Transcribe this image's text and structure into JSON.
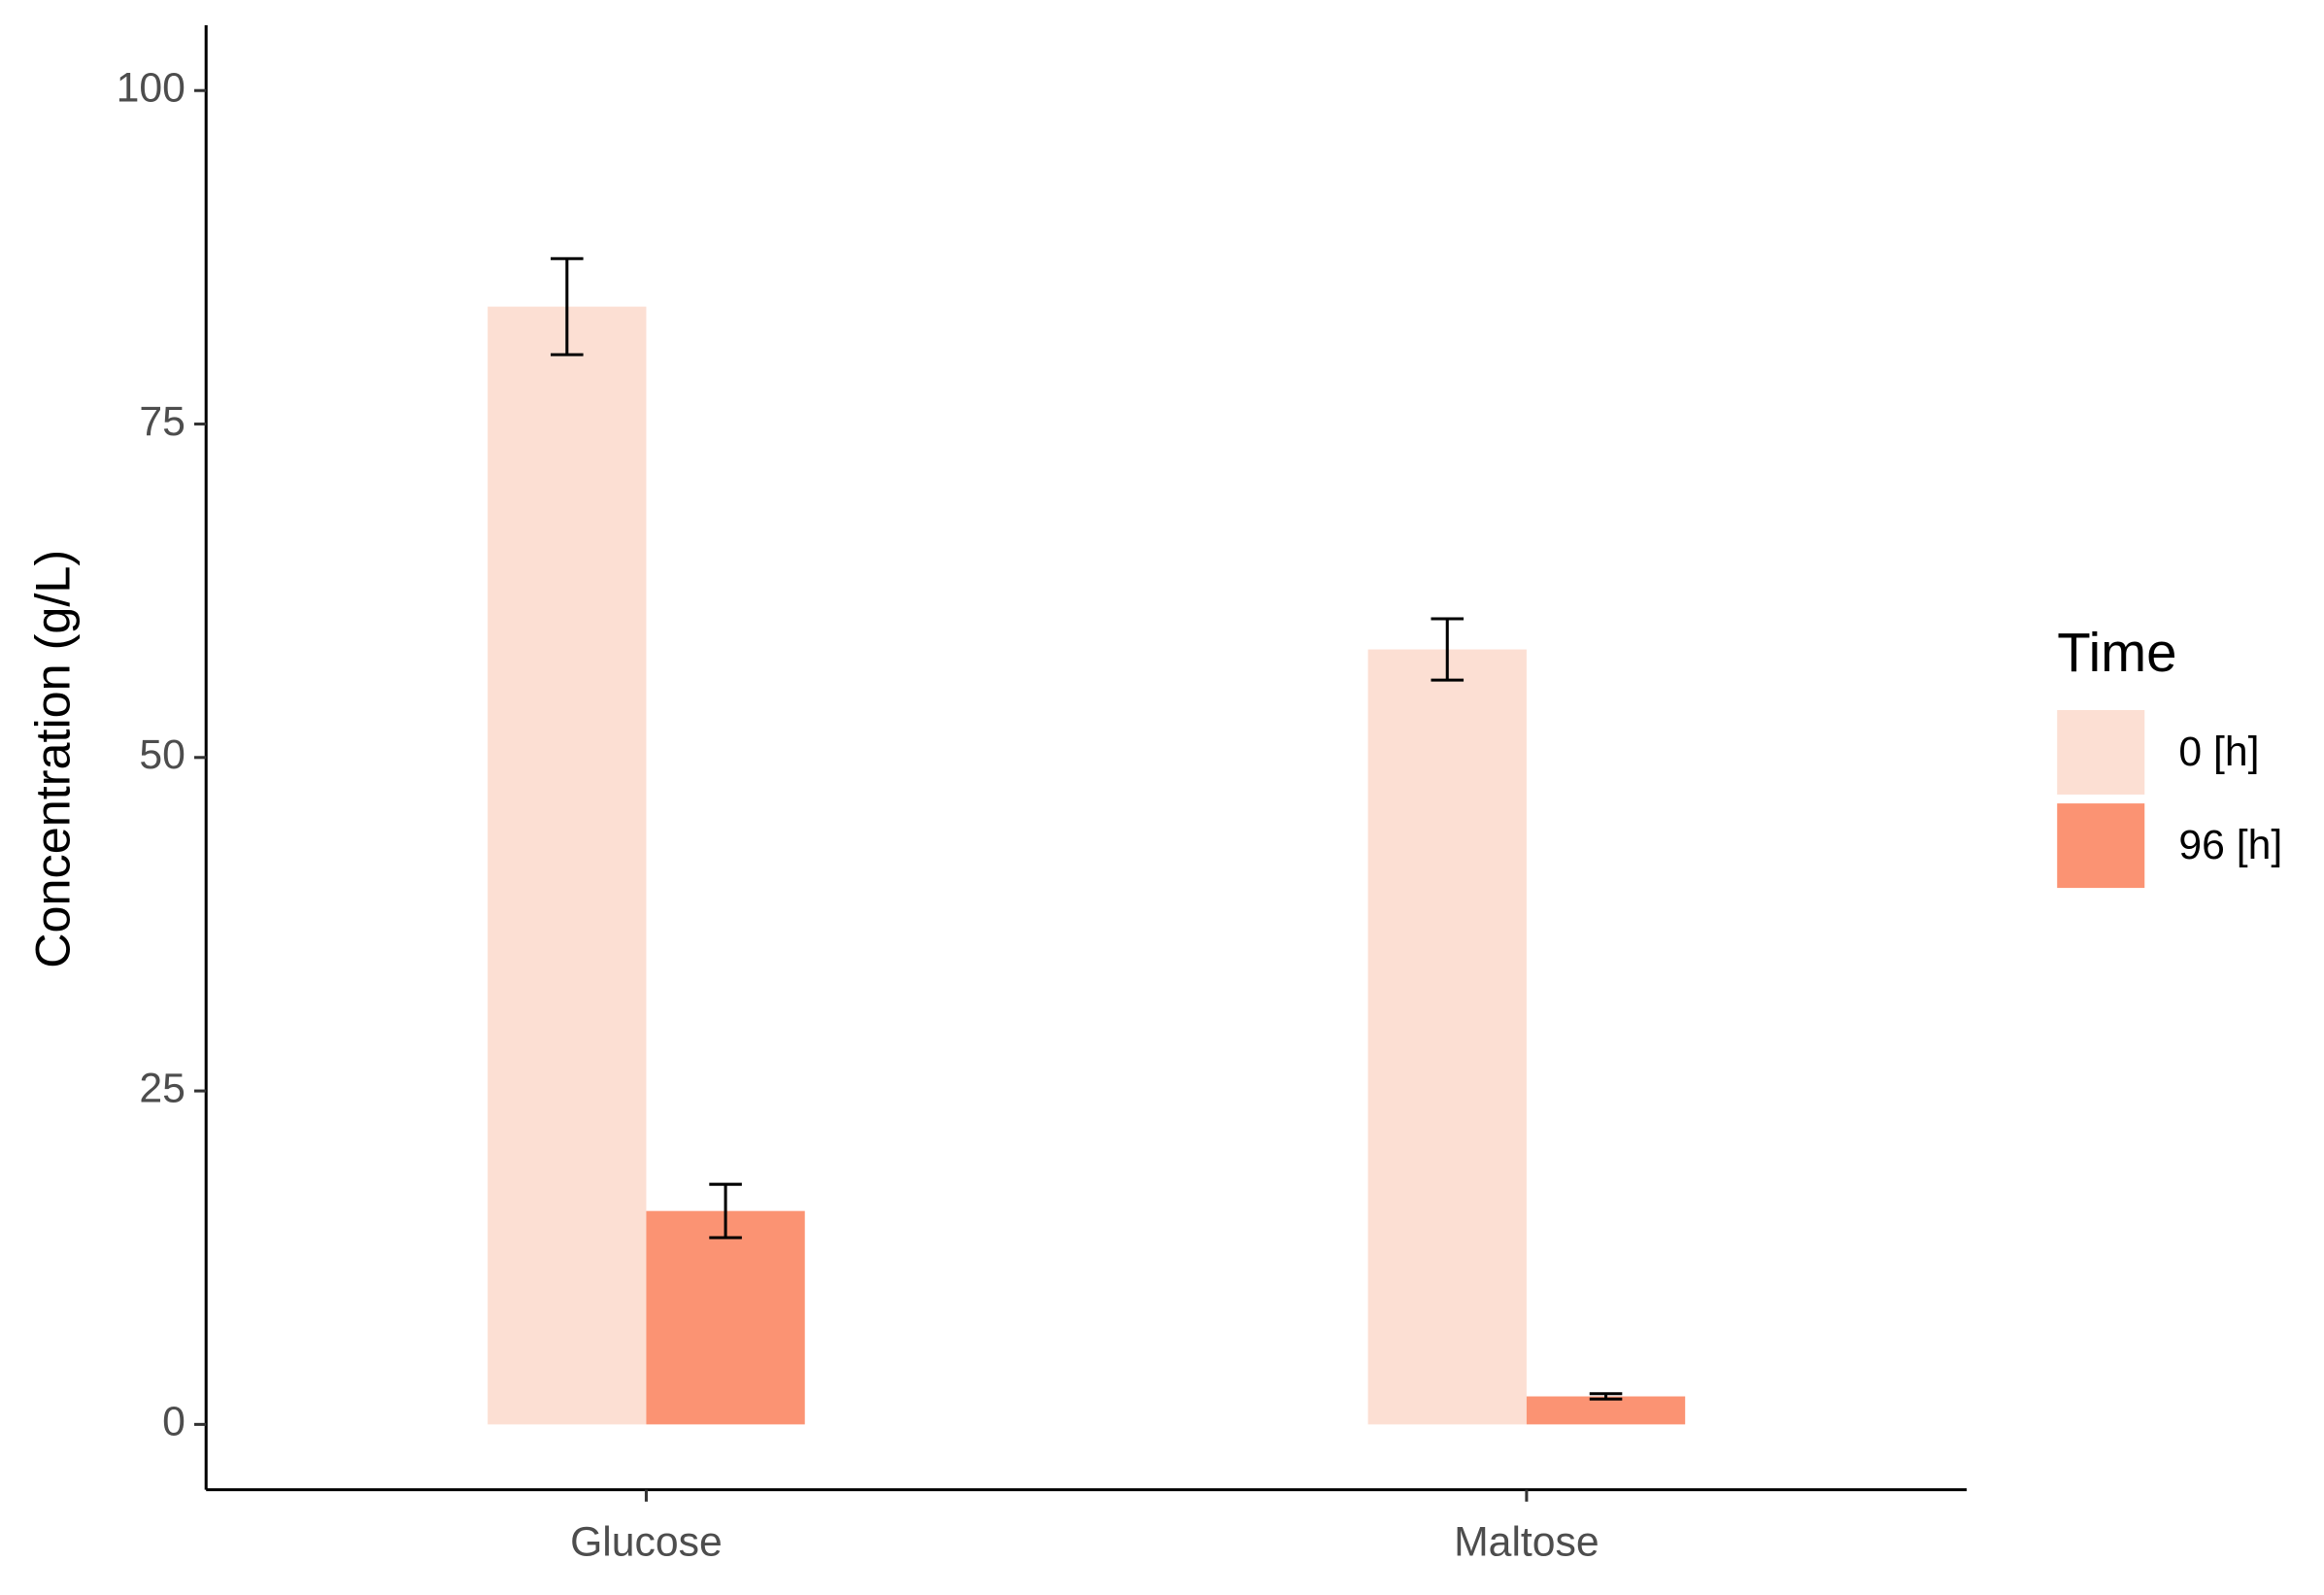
{
  "chart_data": {
    "type": "bar",
    "y_label": "Concentration (g/L)",
    "legend_title": "Time",
    "legend_position": "right",
    "categories": [
      "Glucose",
      "Maltose"
    ],
    "series": [
      {
        "name": "0 [h]",
        "color": "#fcdfd3",
        "values": [
          83.8,
          58.1
        ],
        "errors": [
          3.6,
          2.3
        ]
      },
      {
        "name": "96 [h]",
        "color": "#fb9373",
        "values": [
          16.0,
          2.1
        ],
        "errors": [
          2.0,
          0.2
        ]
      }
    ],
    "ylim": [
      -4.9,
      104.9
    ],
    "yticks": [
      0,
      25,
      50,
      75,
      100
    ],
    "grid": false
  }
}
